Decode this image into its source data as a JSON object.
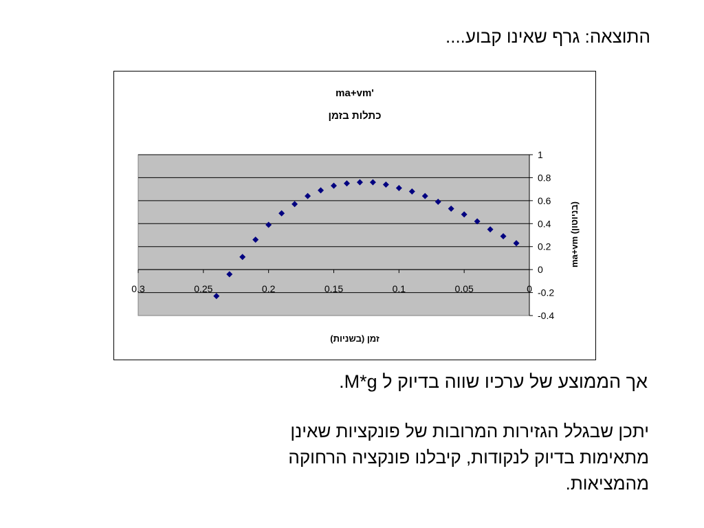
{
  "slide": {
    "title": "התוצאה: גרף שאינו קבוע....",
    "statement": "אך הממוצע של ערכיו שווה בדיוק ל M*g.",
    "explanation_lines": [
      "יתכן שבגלל הגזירות המרובות של פונקציות שאינן",
      "מתאימות בדיוק לנקודות, קיבלנו פונקציה הרחוקה",
      "מהמציאות."
    ]
  },
  "chart_data": {
    "type": "scatter",
    "title": "ma+vm'",
    "subtitle": "כתלות בזמן",
    "xlabel": "זמן (בשניות)",
    "ylabel": "ma+vm (בניוטון)",
    "xlim": [
      0,
      0.3
    ],
    "x_reversed": true,
    "ylim": [
      -0.4,
      1
    ],
    "x_ticks": [
      "0.3",
      "0.25",
      "0.2",
      "0.15",
      "0.1",
      "0.05",
      "0"
    ],
    "x_tick_values": [
      0.3,
      0.25,
      0.2,
      0.15,
      0.1,
      0.05,
      0
    ],
    "y_ticks": [
      "1",
      "0.8",
      "0.6",
      "0.4",
      "0.2",
      "0",
      "-0.2",
      "-0.4"
    ],
    "y_tick_values": [
      1,
      0.8,
      0.6,
      0.4,
      0.2,
      0,
      -0.2,
      -0.4
    ],
    "grid": true,
    "legend": "none",
    "plot_background": "#c0c0c0",
    "marker_color": "#000080",
    "marker_shape": "diamond",
    "series": [
      {
        "x": [
          0.24,
          0.23,
          0.22,
          0.21,
          0.2,
          0.19,
          0.18,
          0.17,
          0.16,
          0.15,
          0.14,
          0.13,
          0.12,
          0.11,
          0.1,
          0.09,
          0.08,
          0.07,
          0.06,
          0.05,
          0.04,
          0.03,
          0.02,
          0.01
        ],
        "y": [
          -0.23,
          -0.04,
          0.11,
          0.26,
          0.39,
          0.49,
          0.57,
          0.64,
          0.69,
          0.73,
          0.75,
          0.76,
          0.76,
          0.74,
          0.71,
          0.68,
          0.64,
          0.59,
          0.53,
          0.48,
          0.42,
          0.35,
          0.29,
          0.23
        ]
      }
    ]
  }
}
